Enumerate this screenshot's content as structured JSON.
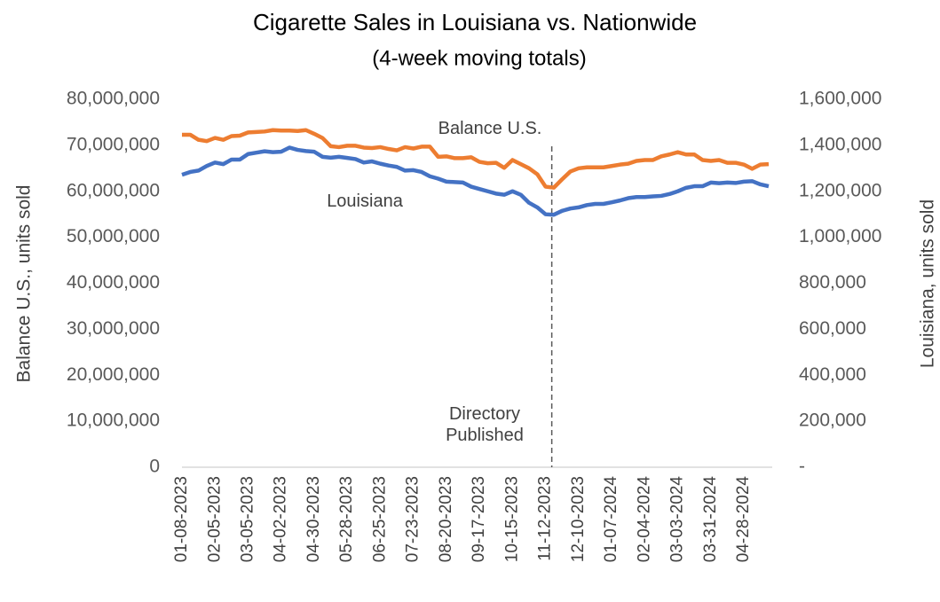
{
  "chart_data": {
    "type": "line",
    "title": "Cigarette Sales in Louisiana vs. Nationwide",
    "subtitle": "(4-week moving totals)",
    "y_label": "Balance U.S., units sold",
    "y2_label": "Louisiana, units sold",
    "annotations": [
      "Balance U.S.",
      "Louisiana",
      "Directory Published"
    ],
    "vline": "11-12-2023",
    "categories": [
      "01-08-2023",
      null,
      null,
      null,
      "02-05-2023",
      null,
      null,
      null,
      "03-05-2023",
      null,
      null,
      null,
      "04-02-2023",
      null,
      null,
      null,
      "04-30-2023",
      null,
      null,
      null,
      "05-28-2023",
      null,
      null,
      null,
      "06-25-2023",
      null,
      null,
      null,
      "07-23-2023",
      null,
      null,
      null,
      "08-20-2023",
      null,
      null,
      null,
      "09-17-2023",
      null,
      null,
      null,
      "10-15-2023",
      null,
      null,
      null,
      "11-12-2023",
      null,
      null,
      null,
      "12-10-2023",
      null,
      null,
      null,
      "01-07-2024",
      null,
      null,
      null,
      "02-04-2024",
      null,
      null,
      null,
      "03-03-2024",
      null,
      null,
      null,
      "03-31-2024",
      null,
      null,
      null,
      "04-28-2024",
      null,
      null,
      null
    ],
    "series": [
      {
        "name": "Balance U.S.",
        "color": "#ED7D31",
        "axis": "y",
        "values": [
          72300000,
          72300000,
          71200000,
          70900000,
          71600000,
          71200000,
          72000000,
          72100000,
          72800000,
          72900000,
          73000000,
          73300000,
          73200000,
          73200000,
          73100000,
          73300000,
          72500000,
          71600000,
          69800000,
          69600000,
          69900000,
          69900000,
          69500000,
          69400000,
          69600000,
          69200000,
          68900000,
          69600000,
          69300000,
          69700000,
          69700000,
          67500000,
          67600000,
          67200000,
          67200000,
          67400000,
          66400000,
          66100000,
          66200000,
          65100000,
          66800000,
          65900000,
          65000000,
          63700000,
          61000000,
          60800000,
          62600000,
          64300000,
          65000000,
          65200000,
          65200000,
          65200000,
          65500000,
          65800000,
          66000000,
          66600000,
          66800000,
          66800000,
          67600000,
          68000000,
          68500000,
          68000000,
          68000000,
          66800000,
          66600000,
          66800000,
          66200000,
          66200000,
          65800000,
          64900000,
          65800000,
          65900000
        ]
      },
      {
        "name": "Louisiana",
        "color": "#4472C4",
        "axis": "y2",
        "values": [
          1272000,
          1284000,
          1290000,
          1310000,
          1325000,
          1318000,
          1338000,
          1338000,
          1362000,
          1368000,
          1374000,
          1370000,
          1372000,
          1390000,
          1380000,
          1375000,
          1372000,
          1350000,
          1346000,
          1350000,
          1345000,
          1340000,
          1325000,
          1330000,
          1320000,
          1312000,
          1306000,
          1290000,
          1292000,
          1284000,
          1265000,
          1255000,
          1242000,
          1240000,
          1238000,
          1220000,
          1210000,
          1200000,
          1190000,
          1185000,
          1200000,
          1185000,
          1150000,
          1130000,
          1100000,
          1098000,
          1115000,
          1125000,
          1130000,
          1140000,
          1145000,
          1145000,
          1152000,
          1160000,
          1170000,
          1175000,
          1175000,
          1178000,
          1180000,
          1188000,
          1200000,
          1215000,
          1222000,
          1222000,
          1238000,
          1235000,
          1238000,
          1236000,
          1242000,
          1244000,
          1230000,
          1222000
        ]
      }
    ],
    "ylim": [
      0,
      80000000
    ],
    "yticks": [
      0,
      {
        "value": 10000000,
        "label": "10,000,000"
      },
      {
        "value": 20000000,
        "label": "20,000,000"
      },
      {
        "value": 30000000,
        "label": "30,000,000"
      },
      {
        "value": 40000000,
        "label": "40,000,000"
      },
      {
        "value": 50000000,
        "label": "50,000,000"
      },
      {
        "value": 60000000,
        "label": "60,000,000"
      },
      {
        "value": 70000000,
        "label": "70,000,000"
      },
      {
        "value": 80000000,
        "label": "80,000,000"
      }
    ],
    "y2lim": [
      0,
      1600000
    ],
    "y2ticks": [
      {
        "value": 0,
        "label": "-"
      },
      {
        "value": 200000,
        "label": "200,000"
      },
      {
        "value": 400000,
        "label": "400,000"
      },
      {
        "value": 600000,
        "label": "600,000"
      },
      {
        "value": 800000,
        "label": "800,000"
      },
      {
        "value": 1000000,
        "label": "1,000,000"
      },
      {
        "value": 1200000,
        "label": "1,200,000"
      },
      {
        "value": 1400000,
        "label": "1,400,000"
      },
      {
        "value": 1600000,
        "label": "1,600,000"
      }
    ],
    "grid": false
  }
}
